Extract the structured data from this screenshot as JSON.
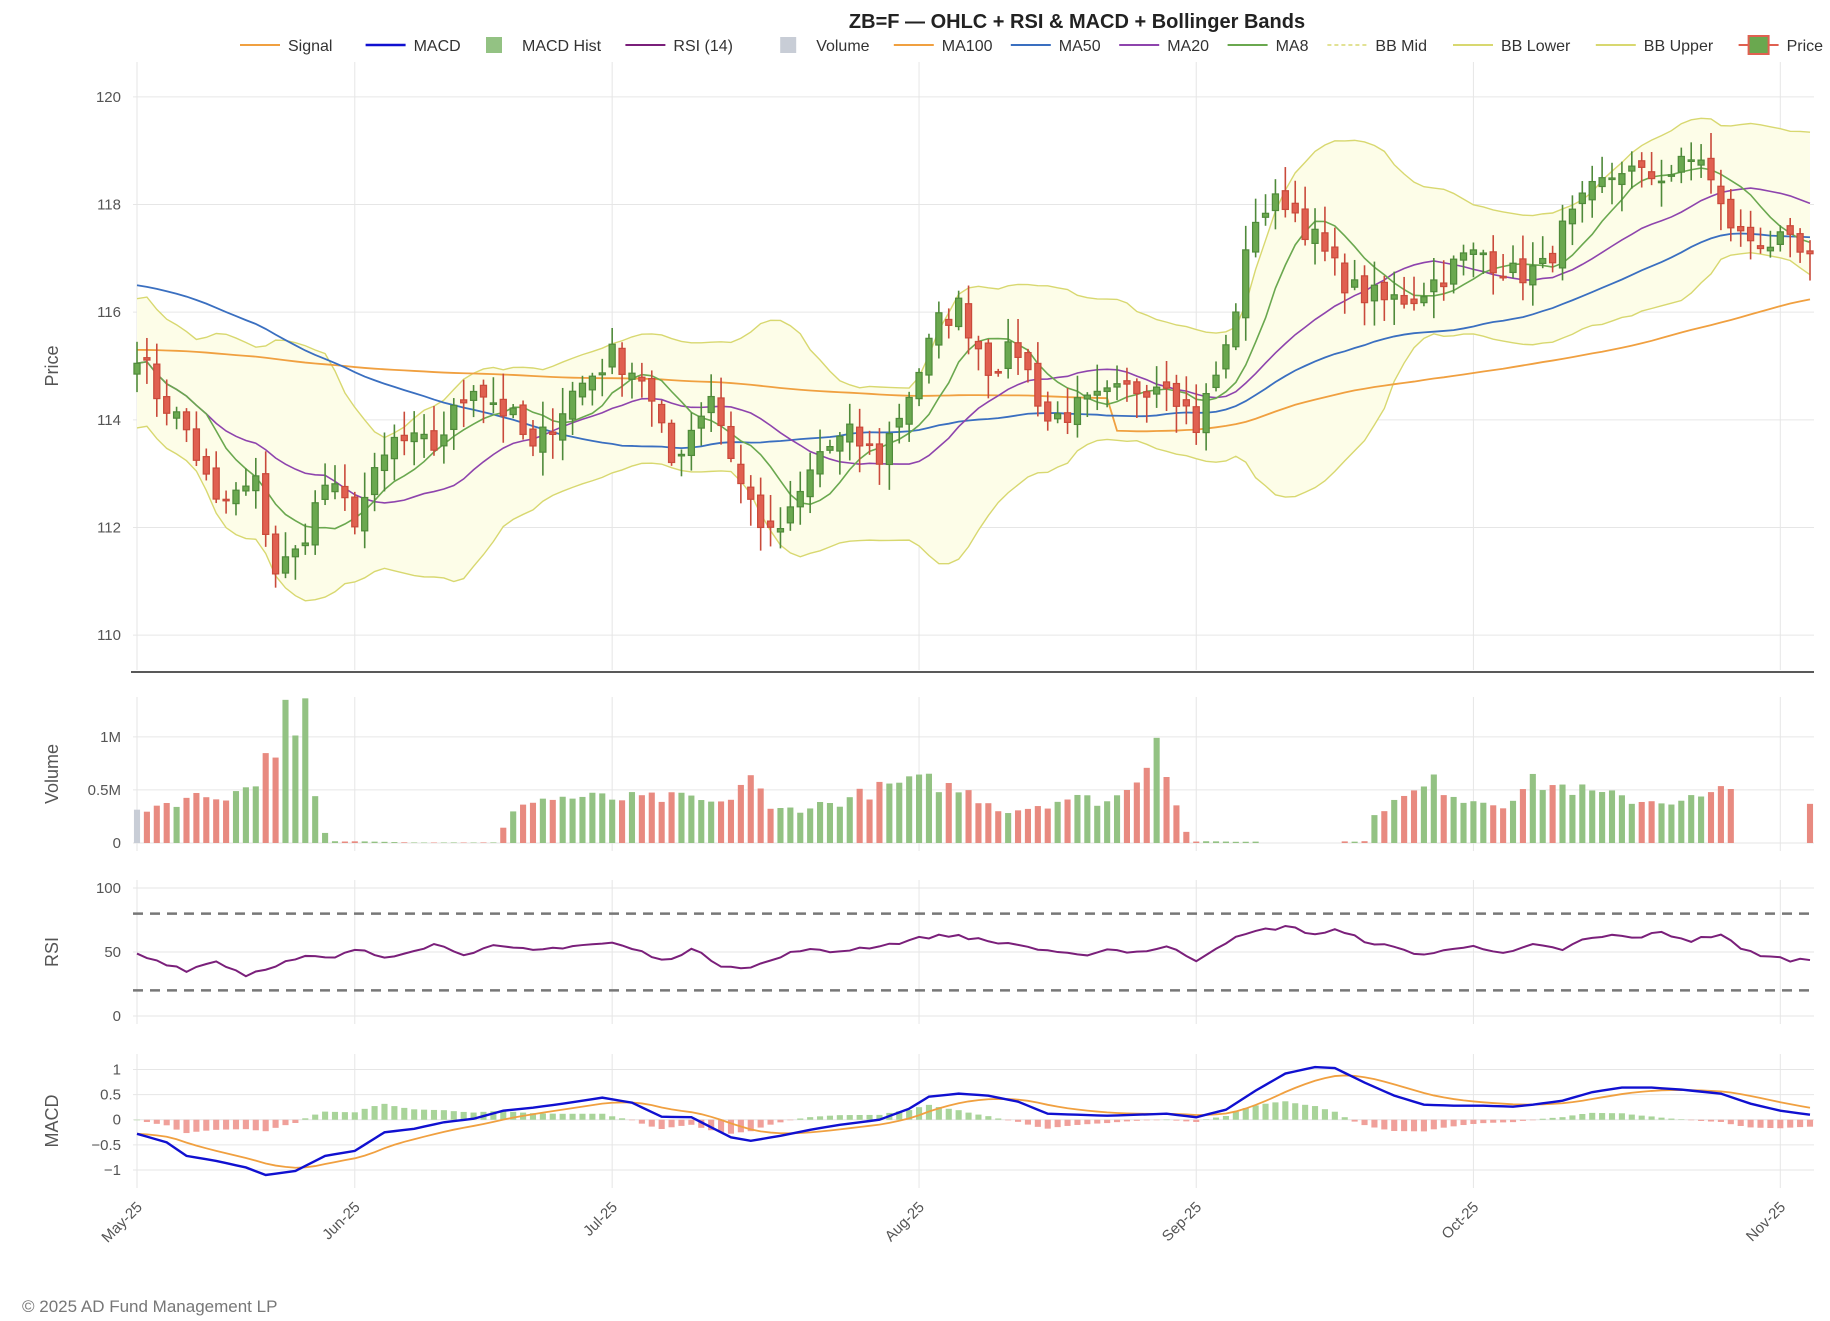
{
  "chart_data": {
    "type": "candlestick",
    "title": "ZB=F — OHLC + RSI & MACD + Bollinger Bands",
    "legend": [
      "Signal",
      "MACD",
      "MACD Hist",
      "RSI (14)",
      "Volume",
      "MA100",
      "MA50",
      "MA20",
      "MA8",
      "BB Mid",
      "BB Lower",
      "BB Upper",
      "Price"
    ],
    "colors": {
      "up": "#6aa84f",
      "down": "#e06050",
      "ma100": "#f0a040",
      "ma50": "#3a6fc0",
      "ma20": "#8e44ad",
      "ma8": "#6aa84f",
      "bb": "#d8d870",
      "bbfill": "#fdfde8",
      "rsi": "#7a1f7a",
      "macd": "#1010d0",
      "signal": "#f0a040"
    },
    "x_tick_labels": [
      "May-25",
      "Jun-25",
      "Jul-25",
      "Aug-25",
      "Sep-25",
      "Oct-25",
      "Nov-25"
    ],
    "x_tick_day_index": [
      0,
      22,
      48,
      79,
      107,
      135,
      166
    ],
    "n_days": 170,
    "panels": {
      "price": {
        "ylabel": "Price",
        "ylim": [
          109.5,
          120.5
        ],
        "ticks": [
          110,
          112,
          114,
          116,
          118,
          120
        ]
      },
      "volume": {
        "ylabel": "Volume",
        "ylim": [
          0,
          1300000
        ],
        "ticks": [
          0,
          500000,
          1000000
        ],
        "tick_labels": [
          "0",
          "0.5M",
          "1M"
        ]
      },
      "rsi": {
        "ylabel": "RSI",
        "ylim": [
          0,
          100
        ],
        "ticks": [
          0,
          50,
          100
        ],
        "bands": [
          80,
          20
        ]
      },
      "macd": {
        "ylabel": "MACD",
        "ylim": [
          -1.2,
          1.15
        ],
        "ticks": [
          -1,
          -0.5,
          0,
          0.5,
          1
        ],
        "tick_labels": [
          "−1",
          "−0.5",
          "0",
          "0.5",
          "1"
        ]
      }
    },
    "close_anchors": [
      [
        0,
        115.3
      ],
      [
        2,
        114.5
      ],
      [
        5,
        113.8
      ],
      [
        8,
        112.4
      ],
      [
        12,
        112.8
      ],
      [
        14,
        111.2
      ],
      [
        16,
        111.5
      ],
      [
        19,
        112.8
      ],
      [
        22,
        112.2
      ],
      [
        26,
        113.6
      ],
      [
        30,
        113.5
      ],
      [
        34,
        114.7
      ],
      [
        38,
        114.0
      ],
      [
        40,
        113.4
      ],
      [
        44,
        114.5
      ],
      [
        48,
        115.2
      ],
      [
        51,
        114.8
      ],
      [
        54,
        113.2
      ],
      [
        58,
        114.5
      ],
      [
        61,
        112.8
      ],
      [
        64,
        111.8
      ],
      [
        66,
        112.2
      ],
      [
        69,
        113.4
      ],
      [
        72,
        113.7
      ],
      [
        75,
        113.3
      ],
      [
        78,
        114.5
      ],
      [
        81,
        115.8
      ],
      [
        83,
        116.1
      ],
      [
        86,
        115.0
      ],
      [
        89,
        115.3
      ],
      [
        92,
        114.0
      ],
      [
        95,
        114.2
      ],
      [
        98,
        114.4
      ],
      [
        101,
        114.6
      ],
      [
        104,
        114.8
      ],
      [
        107,
        113.9
      ],
      [
        110,
        115.3
      ],
      [
        113,
        117.8
      ],
      [
        116,
        118.1
      ],
      [
        118,
        117.6
      ],
      [
        121,
        116.8
      ],
      [
        123,
        116.4
      ],
      [
        126,
        116.2
      ],
      [
        129,
        116.3
      ],
      [
        132,
        116.7
      ],
      [
        134,
        117.0
      ],
      [
        136,
        117.1
      ],
      [
        139,
        116.7
      ],
      [
        142,
        116.8
      ],
      [
        144,
        117.5
      ],
      [
        147,
        118.2
      ],
      [
        150,
        118.7
      ],
      [
        152,
        118.5
      ],
      [
        155,
        118.6
      ],
      [
        158,
        118.9
      ],
      [
        160,
        117.9
      ],
      [
        162,
        117.4
      ],
      [
        165,
        117.3
      ],
      [
        167,
        117.2
      ],
      [
        169,
        116.9
      ]
    ],
    "volume_anchors": [
      [
        0,
        310000
      ],
      [
        5,
        420000
      ],
      [
        10,
        470000
      ],
      [
        12,
        600000
      ],
      [
        14,
        940000
      ],
      [
        15,
        1200000
      ],
      [
        16,
        950000
      ],
      [
        17,
        1220000
      ],
      [
        18,
        420000
      ],
      [
        19,
        90000
      ],
      [
        20,
        15000
      ],
      [
        24,
        15000
      ],
      [
        28,
        5000
      ],
      [
        36,
        5000
      ],
      [
        39,
        400000
      ],
      [
        44,
        430000
      ],
      [
        48,
        420000
      ],
      [
        50,
        420000
      ],
      [
        56,
        420000
      ],
      [
        59,
        350000
      ],
      [
        62,
        650000
      ],
      [
        64,
        300000
      ],
      [
        70,
        370000
      ],
      [
        74,
        480000
      ],
      [
        77,
        560000
      ],
      [
        80,
        580000
      ],
      [
        84,
        470000
      ],
      [
        88,
        300000
      ],
      [
        94,
        420000
      ],
      [
        98,
        400000
      ],
      [
        100,
        480000
      ],
      [
        102,
        800000
      ],
      [
        103,
        1020000
      ],
      [
        104,
        720000
      ],
      [
        105,
        380000
      ],
      [
        106,
        100000
      ],
      [
        107,
        15000
      ],
      [
        112,
        12000
      ],
      [
        124,
        15000
      ],
      [
        125,
        300000
      ],
      [
        128,
        420000
      ],
      [
        131,
        570000
      ],
      [
        134,
        420000
      ],
      [
        138,
        380000
      ],
      [
        141,
        570000
      ],
      [
        144,
        530000
      ],
      [
        148,
        450000
      ],
      [
        152,
        400000
      ],
      [
        154,
        400000
      ],
      [
        158,
        420000
      ],
      [
        160,
        490000
      ],
      [
        161,
        460000
      ],
      [
        169,
        380000
      ]
    ],
    "no_volume_ranges": [
      [
        113,
        122
      ],
      [
        161,
        169
      ]
    ],
    "rsi_anchors": [
      [
        0,
        48
      ],
      [
        3,
        41
      ],
      [
        5,
        36
      ],
      [
        8,
        43
      ],
      [
        11,
        32
      ],
      [
        14,
        40
      ],
      [
        17,
        46
      ],
      [
        20,
        45
      ],
      [
        22,
        52
      ],
      [
        25,
        46
      ],
      [
        30,
        56
      ],
      [
        33,
        49
      ],
      [
        36,
        54
      ],
      [
        40,
        51
      ],
      [
        44,
        55
      ],
      [
        48,
        57
      ],
      [
        51,
        50
      ],
      [
        53,
        43
      ],
      [
        56,
        52
      ],
      [
        59,
        40
      ],
      [
        62,
        38
      ],
      [
        64,
        43
      ],
      [
        67,
        52
      ],
      [
        70,
        50
      ],
      [
        73,
        53
      ],
      [
        76,
        56
      ],
      [
        80,
        62
      ],
      [
        83,
        63
      ],
      [
        86,
        58
      ],
      [
        89,
        56
      ],
      [
        92,
        50
      ],
      [
        95,
        47
      ],
      [
        98,
        52
      ],
      [
        101,
        50
      ],
      [
        104,
        54
      ],
      [
        107,
        44
      ],
      [
        110,
        58
      ],
      [
        113,
        66
      ],
      [
        116,
        70
      ],
      [
        119,
        64
      ],
      [
        121,
        67
      ],
      [
        124,
        59
      ],
      [
        127,
        53
      ],
      [
        130,
        48
      ],
      [
        133,
        52
      ],
      [
        135,
        56
      ],
      [
        138,
        48
      ],
      [
        141,
        55
      ],
      [
        144,
        52
      ],
      [
        146,
        59
      ],
      [
        149,
        63
      ],
      [
        151,
        61
      ],
      [
        154,
        65
      ],
      [
        157,
        59
      ],
      [
        160,
        64
      ],
      [
        162,
        52
      ],
      [
        165,
        46
      ],
      [
        167,
        44
      ],
      [
        169,
        44
      ]
    ],
    "macd_anchors": [
      [
        0,
        -0.28
      ],
      [
        3,
        -0.45
      ],
      [
        5,
        -0.72
      ],
      [
        8,
        -0.82
      ],
      [
        11,
        -0.95
      ],
      [
        13,
        -1.1
      ],
      [
        16,
        -1.02
      ],
      [
        19,
        -0.72
      ],
      [
        22,
        -0.62
      ],
      [
        25,
        -0.25
      ],
      [
        28,
        -0.18
      ],
      [
        31,
        -0.05
      ],
      [
        34,
        0.02
      ],
      [
        37,
        0.18
      ],
      [
        40,
        0.24
      ],
      [
        43,
        0.32
      ],
      [
        47,
        0.44
      ],
      [
        50,
        0.34
      ],
      [
        53,
        0.06
      ],
      [
        56,
        0.05
      ],
      [
        58,
        -0.15
      ],
      [
        60,
        -0.35
      ],
      [
        62,
        -0.42
      ],
      [
        65,
        -0.32
      ],
      [
        68,
        -0.2
      ],
      [
        71,
        -0.1
      ],
      [
        75,
        0.0
      ],
      [
        78,
        0.22
      ],
      [
        80,
        0.46
      ],
      [
        83,
        0.52
      ],
      [
        86,
        0.48
      ],
      [
        89,
        0.36
      ],
      [
        92,
        0.12
      ],
      [
        95,
        0.1
      ],
      [
        98,
        0.08
      ],
      [
        101,
        0.1
      ],
      [
        104,
        0.12
      ],
      [
        107,
        0.05
      ],
      [
        110,
        0.2
      ],
      [
        113,
        0.58
      ],
      [
        116,
        0.92
      ],
      [
        119,
        1.05
      ],
      [
        121,
        1.03
      ],
      [
        124,
        0.74
      ],
      [
        127,
        0.48
      ],
      [
        130,
        0.3
      ],
      [
        133,
        0.28
      ],
      [
        136,
        0.28
      ],
      [
        139,
        0.26
      ],
      [
        141,
        0.3
      ],
      [
        144,
        0.38
      ],
      [
        147,
        0.55
      ],
      [
        150,
        0.64
      ],
      [
        153,
        0.64
      ],
      [
        156,
        0.6
      ],
      [
        160,
        0.52
      ],
      [
        163,
        0.32
      ],
      [
        166,
        0.18
      ],
      [
        169,
        0.1
      ]
    ]
  },
  "footer": "© 2025 AD Fund Management LP"
}
